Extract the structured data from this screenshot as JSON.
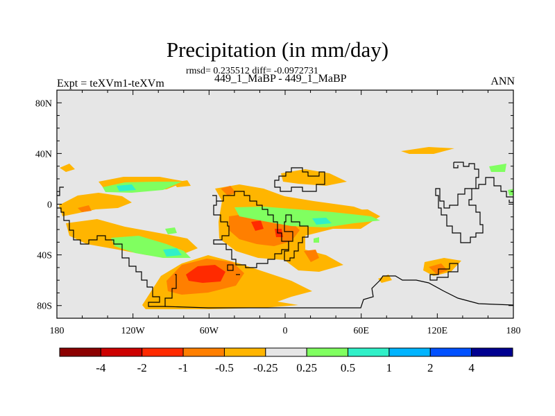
{
  "chart_data": {
    "type": "heatmap",
    "title": "Precipitation (in mm/day)",
    "stats_text": "rmsd= 0.235512 diff= -0.0972731",
    "subtitle": "449_1_MaBP - 449_1_MaBP",
    "left_header": "Expt = teXVm1-teXVm",
    "right_header": "ANN",
    "x_axis": {
      "range": [
        -180,
        180
      ],
      "ticks": [
        -180,
        -120,
        -60,
        0,
        60,
        120,
        180
      ],
      "tick_labels": [
        "180",
        "120W",
        "60W",
        "0",
        "60E",
        "120E",
        "180"
      ]
    },
    "y_axis": {
      "range": [
        -90,
        90
      ],
      "ticks": [
        80,
        40,
        0,
        -40,
        -80
      ],
      "tick_labels": [
        "80N",
        "40N",
        "0",
        "40S",
        "80S"
      ]
    },
    "background_color": "#e6e6e6",
    "colorbar": {
      "colors": [
        "#8b0000",
        "#cc0000",
        "#ff2a00",
        "#ff7f00",
        "#ffb500",
        "#e6e6e6",
        "#80ff60",
        "#30f0c8",
        "#00b4ff",
        "#0050ff",
        "#000090"
      ],
      "labels": [
        "-4",
        "-2",
        "-1",
        "-0.5",
        "-0.25",
        "0.25",
        "0.5",
        "1",
        "2",
        "4"
      ]
    }
  }
}
